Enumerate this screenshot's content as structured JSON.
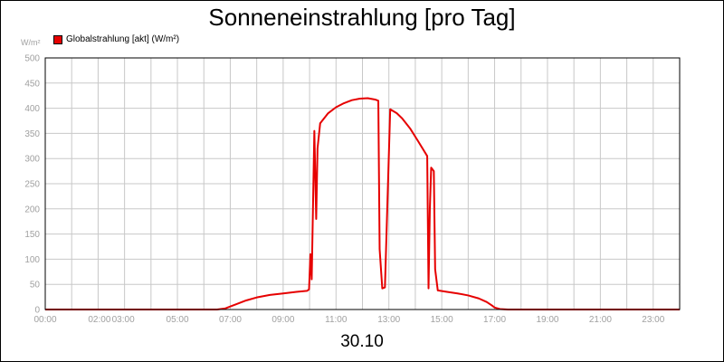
{
  "colors": {
    "series": "#e60000",
    "grid": "#c8c8c8",
    "tick_text": "#a0a0a0",
    "axis": "#000000"
  },
  "chart_data": {
    "type": "line",
    "title": "Sonneneinstrahlung [pro Tag]",
    "ylabel": "W/m²",
    "xlabel": "30.10",
    "ylim": [
      0,
      500
    ],
    "xlim": [
      0,
      24
    ],
    "grid": true,
    "legend_position": "top-left",
    "y_ticks": [
      0,
      50,
      100,
      150,
      200,
      250,
      300,
      350,
      400,
      450,
      500
    ],
    "x_ticks": [
      {
        "x": 0,
        "label": "00:00"
      },
      {
        "x": 2,
        "label": "02:00"
      },
      {
        "x": 3,
        "label": "03:00"
      },
      {
        "x": 5,
        "label": "05:00"
      },
      {
        "x": 7,
        "label": "07:00"
      },
      {
        "x": 9,
        "label": "09:00"
      },
      {
        "x": 11,
        "label": "11:00"
      },
      {
        "x": 13,
        "label": "13:00"
      },
      {
        "x": 15,
        "label": "15:00"
      },
      {
        "x": 17,
        "label": "17:00"
      },
      {
        "x": 19,
        "label": "19:00"
      },
      {
        "x": 21,
        "label": "21:00"
      },
      {
        "x": 23,
        "label": "23:00"
      }
    ],
    "series": [
      {
        "name": "Globalstrahlung [akt] (W/m²)",
        "color": "#e60000",
        "points": [
          [
            0,
            0
          ],
          [
            6.5,
            0
          ],
          [
            6.8,
            2
          ],
          [
            7.2,
            10
          ],
          [
            7.6,
            18
          ],
          [
            8.0,
            24
          ],
          [
            8.5,
            29
          ],
          [
            9.0,
            32
          ],
          [
            9.5,
            35
          ],
          [
            9.9,
            37
          ],
          [
            9.98,
            40
          ],
          [
            10.03,
            110
          ],
          [
            10.08,
            60
          ],
          [
            10.18,
            355
          ],
          [
            10.25,
            180
          ],
          [
            10.3,
            320
          ],
          [
            10.4,
            370
          ],
          [
            10.7,
            390
          ],
          [
            11.0,
            402
          ],
          [
            11.3,
            410
          ],
          [
            11.6,
            416
          ],
          [
            11.9,
            419
          ],
          [
            12.2,
            420
          ],
          [
            12.5,
            417
          ],
          [
            12.6,
            415
          ],
          [
            12.65,
            120
          ],
          [
            12.75,
            42
          ],
          [
            12.85,
            44
          ],
          [
            13.05,
            398
          ],
          [
            13.3,
            390
          ],
          [
            13.5,
            380
          ],
          [
            13.8,
            360
          ],
          [
            14.1,
            335
          ],
          [
            14.45,
            305
          ],
          [
            14.5,
            42
          ],
          [
            14.55,
            200
          ],
          [
            14.6,
            282
          ],
          [
            14.7,
            275
          ],
          [
            14.75,
            80
          ],
          [
            14.85,
            38
          ],
          [
            15.2,
            35
          ],
          [
            15.6,
            32
          ],
          [
            16.0,
            28
          ],
          [
            16.4,
            22
          ],
          [
            16.7,
            15
          ],
          [
            16.9,
            8
          ],
          [
            17.0,
            4
          ],
          [
            17.2,
            1
          ],
          [
            17.5,
            0
          ],
          [
            24,
            0
          ]
        ]
      }
    ]
  }
}
